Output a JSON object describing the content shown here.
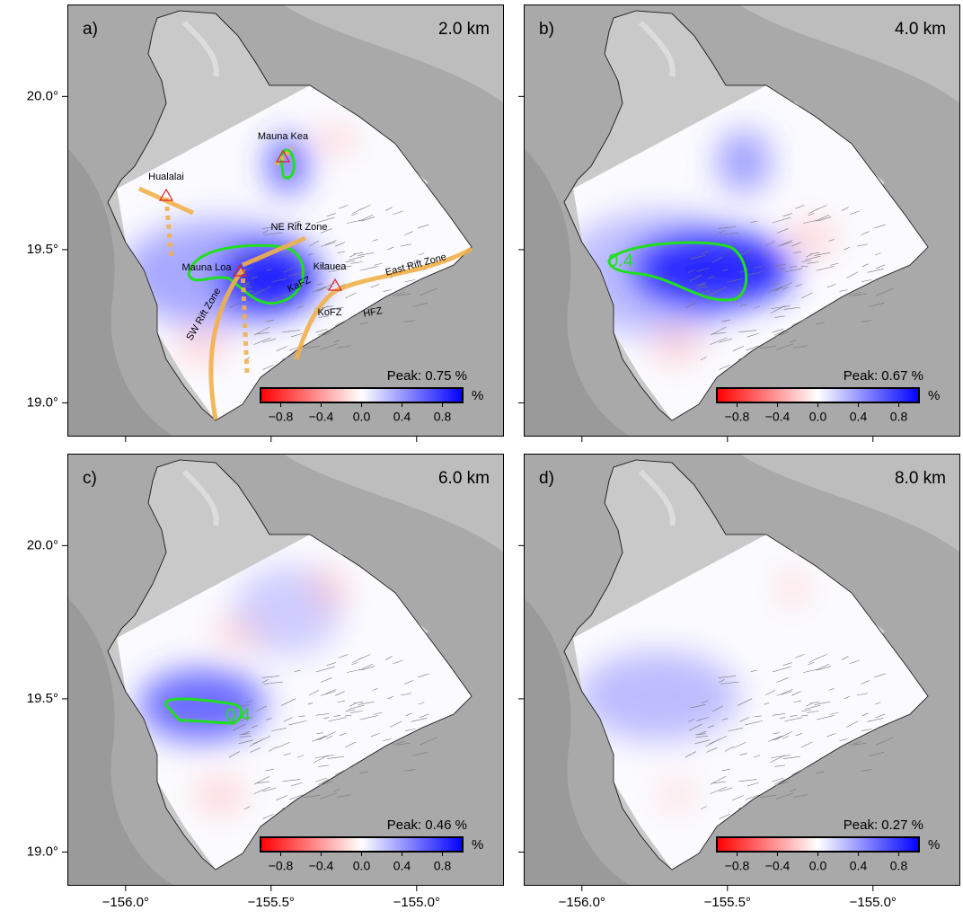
{
  "lon_range": [
    -156.2,
    -154.7
  ],
  "lat_range": [
    18.89,
    20.3
  ],
  "lon_ticks": [
    {
      "value": -156.0,
      "label": "−156.0°"
    },
    {
      "value": -155.5,
      "label": "−155.5°"
    },
    {
      "value": -155.0,
      "label": "−155.0°"
    }
  ],
  "lat_ticks": [
    {
      "value": 20.0,
      "label": "20.0°"
    },
    {
      "value": 19.5,
      "label": "19.5°"
    },
    {
      "value": 19.0,
      "label": "19.0°"
    }
  ],
  "colorbar": {
    "range": [
      -1,
      1
    ],
    "unit": "%",
    "ticks": [
      {
        "value": -0.8,
        "label": "−0.8"
      },
      {
        "value": -0.4,
        "label": "−0.4"
      },
      {
        "value": 0,
        "label": "0.0"
      },
      0.4,
      0.8
    ]
  },
  "panels": [
    {
      "label": "a)",
      "depth": "2.0 km",
      "peak": "Peak: 0.75 %"
    },
    {
      "label": "b)",
      "depth": "4.0 km",
      "peak": "Peak: 0.67 %",
      "contour_label": "0.4"
    },
    {
      "label": "c)",
      "depth": "6.0 km",
      "peak": "Peak: 0.46 %",
      "contour_label": "0.4"
    },
    {
      "label": "d)",
      "depth": "8.0 km",
      "peak": "Peak: 0.27 %"
    }
  ],
  "annotations": {
    "mauna_kea": "Mauna Kea",
    "hualalai": "Hualalai",
    "ne_rift": "NE Rift Zone",
    "mauna_loa": "Mauna Loa",
    "kilauea": "Kilauea",
    "east_rift": "East Rift Zone",
    "kafz": "KaFZ",
    "sw_rift": "SW Rift Zone",
    "kofz": "KoFZ",
    "hfz": "HFZ"
  }
}
